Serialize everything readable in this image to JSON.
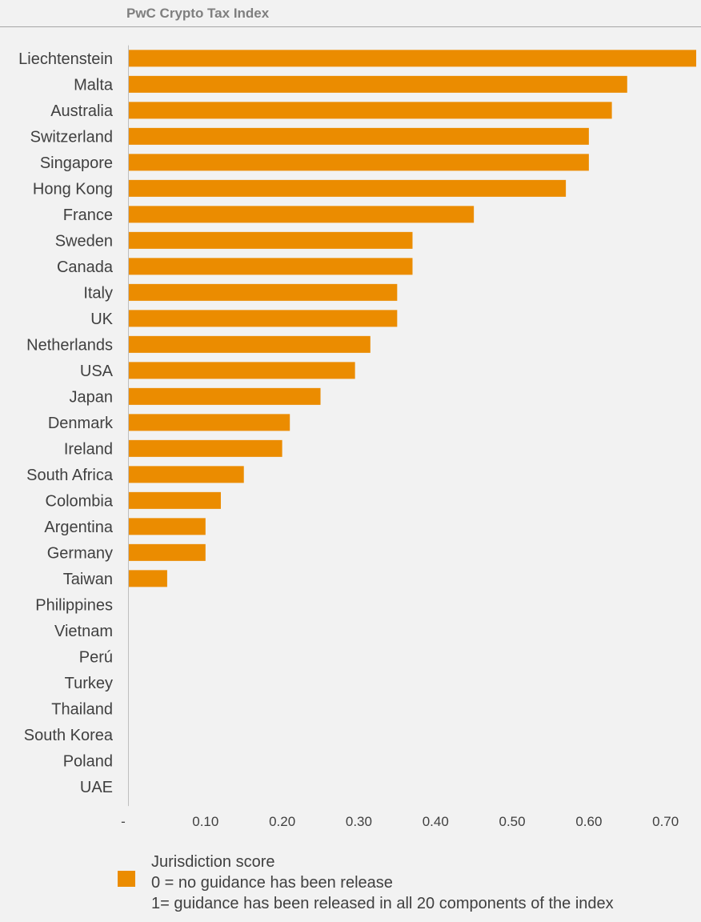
{
  "chart_data": {
    "type": "bar",
    "orientation": "horizontal",
    "title": "PwC Crypto Tax Index",
    "categories": [
      "Liechtenstein",
      "Malta",
      "Australia",
      "Switzerland",
      "Singapore",
      "Hong Kong",
      "France",
      "Sweden",
      "Canada",
      "Italy",
      "UK",
      "Netherlands",
      "USA",
      "Japan",
      "Denmark",
      "Ireland",
      "South Africa",
      "Colombia",
      "Argentina",
      "Germany",
      "Taiwan",
      "Philippines",
      "Vietnam",
      "Perú",
      "Turkey",
      "Thailand",
      "South Korea",
      "Poland",
      "UAE"
    ],
    "values": [
      0.74,
      0.65,
      0.63,
      0.6,
      0.6,
      0.57,
      0.45,
      0.37,
      0.37,
      0.35,
      0.35,
      0.315,
      0.295,
      0.25,
      0.21,
      0.2,
      0.15,
      0.12,
      0.1,
      0.1,
      0.05,
      0,
      0,
      0,
      0,
      0,
      0,
      0,
      0
    ],
    "xlim": [
      0,
      0.74
    ],
    "x_ticks": [
      {
        "value": 0,
        "label": "-"
      },
      {
        "value": 0.1,
        "label": "0.10"
      },
      {
        "value": 0.2,
        "label": "0.20"
      },
      {
        "value": 0.3,
        "label": "0.30"
      },
      {
        "value": 0.4,
        "label": "0.40"
      },
      {
        "value": 0.5,
        "label": "0.50"
      },
      {
        "value": 0.6,
        "label": "0.60"
      },
      {
        "value": 0.7,
        "label": "0.70"
      }
    ],
    "bar_color": "#eb8c00",
    "grid": false,
    "legend": {
      "placement": "bottom",
      "lines": [
        "Jurisdiction score",
        "0 = no guidance has been release",
        "1= guidance has been released in all 20 components of the index"
      ]
    }
  }
}
